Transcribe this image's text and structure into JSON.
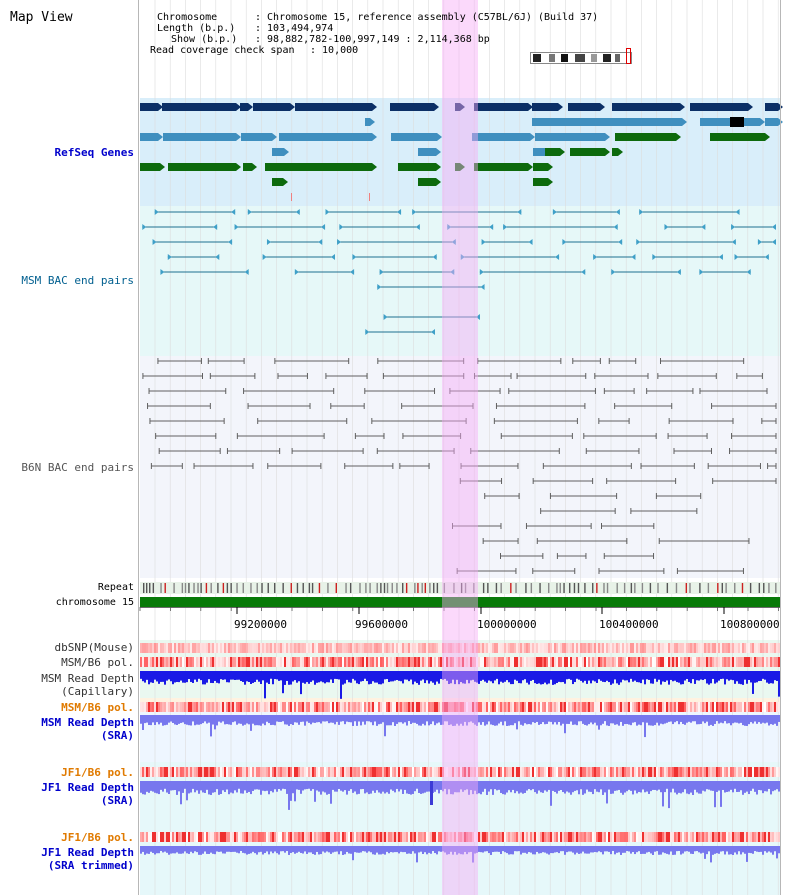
{
  "title": "Map View",
  "info": {
    "chromosome_label": "Chromosome",
    "chromosome_value": ": Chromosome 15, reference assembly (C57BL/6J) (Build 37)",
    "length_label": "Length (b.p.)",
    "length_value": ": 103,494,974",
    "show_label": "Show (b.p.)",
    "show_value": ": 98,882,782-100,997,149 : 2,114,368 bp",
    "coverage_label": "Read coverage check span",
    "coverage_value": ": 10,000"
  },
  "tracks": {
    "refseq": "RefSeq Genes",
    "msm_bac": "MSM BAC end pairs",
    "b6n_bac": "B6N BAC end pairs",
    "repeat": "Repeat",
    "chromosome": "chromosome 15",
    "dbsnp": "dbSNP(Mouse)",
    "msm_b6_pol": "MSM/B6 pol.",
    "msm_depth_cap_1": "MSM Read Depth",
    "msm_depth_cap_2": "(Capillary)",
    "msm_b6_pol_2": "MSM/B6 pol.",
    "msm_depth_sra_1": "MSM Read Depth",
    "msm_depth_sra_2": "(SRA)",
    "jf1_b6_pol": "JF1/B6 pol.",
    "jf1_depth_sra_1": "JF1 Read Depth",
    "jf1_depth_sra_2": "(SRA)",
    "jf1_b6_pol_2": "JF1/B6 pol.",
    "jf1_depth_trim_1": "JF1 Read Depth",
    "jf1_depth_trim_2": "(SRA trimmed)"
  },
  "axis_ticks": [
    "99200000",
    "99600000",
    "100000000",
    "100400000",
    "100800000"
  ],
  "colors": {
    "refseq_bg": "#d9eefa",
    "msm_bg": "#e6f8f8",
    "b6n_bg": "#f3f5fb",
    "gene_dark": "#0b2f66",
    "gene_mid": "#3f8fbf",
    "gene_green": "#0d6a0d",
    "highlight": "#f6aaf6",
    "chrom_green": "#087a08",
    "label_blue": "#0000cc",
    "label_teal": "#005f8f",
    "label_orange": "#e07a00",
    "depth_blue": "#1a1ae6",
    "depth_light": "#7777ee"
  }
}
